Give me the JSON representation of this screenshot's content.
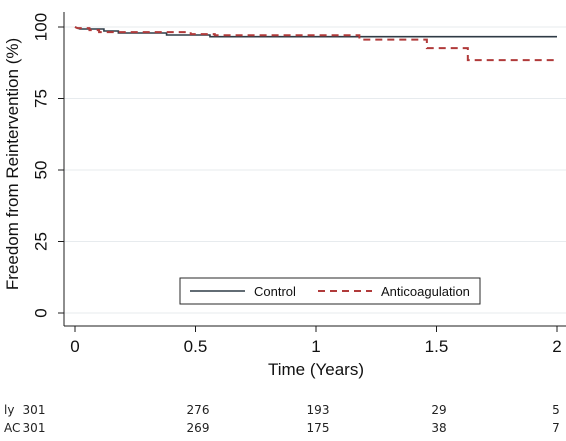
{
  "chart_data": {
    "type": "line",
    "xlabel": "Time (Years)",
    "ylabel": "Freedom from Reintervention (%)",
    "xlim": [
      0,
      2
    ],
    "ylim": [
      0,
      100
    ],
    "x_ticks": [
      0,
      0.5,
      1,
      1.5,
      2
    ],
    "x_tick_labels": [
      "0",
      "0.5",
      "1",
      "1.5",
      "2"
    ],
    "y_ticks": [
      0,
      25,
      50,
      75,
      100
    ],
    "y_tick_labels": [
      "0",
      "25",
      "50",
      "75",
      "100"
    ],
    "grid": true,
    "legend_position": "bottom-right",
    "series": [
      {
        "name": "Control",
        "color": "#2f3b46",
        "line_style": "solid",
        "points": [
          [
            0,
            100
          ],
          [
            0.02,
            99.3
          ],
          [
            0.12,
            99.3
          ],
          [
            0.12,
            98.6
          ],
          [
            0.18,
            98.6
          ],
          [
            0.18,
            97.9
          ],
          [
            0.38,
            97.9
          ],
          [
            0.38,
            97.2
          ],
          [
            0.56,
            97.2
          ],
          [
            0.56,
            96.6
          ],
          [
            2.0,
            96.6
          ]
        ]
      },
      {
        "name": "Anticoagulation",
        "color": "#b03a3a",
        "line_style": "dashed",
        "points": [
          [
            0,
            100
          ],
          [
            0.01,
            99.6
          ],
          [
            0.06,
            99.6
          ],
          [
            0.06,
            98.9
          ],
          [
            0.1,
            98.9
          ],
          [
            0.1,
            98.2
          ],
          [
            0.48,
            98.2
          ],
          [
            0.48,
            97.5
          ],
          [
            0.58,
            97.5
          ],
          [
            0.58,
            97.1
          ],
          [
            1.18,
            97.1
          ],
          [
            1.18,
            95.6
          ],
          [
            1.46,
            95.6
          ],
          [
            1.46,
            92.6
          ],
          [
            1.63,
            92.6
          ],
          [
            1.63,
            88.4
          ],
          [
            2.0,
            88.4
          ]
        ]
      }
    ],
    "risk_table": {
      "x": [
        0,
        0.5,
        1,
        1.5,
        2
      ],
      "rows": [
        {
          "label": "ly",
          "values": [
            "301",
            "276",
            "193",
            "29",
            "5"
          ]
        },
        {
          "label": "AC",
          "values": [
            "301",
            "269",
            "175",
            "38",
            "7"
          ]
        }
      ]
    }
  }
}
